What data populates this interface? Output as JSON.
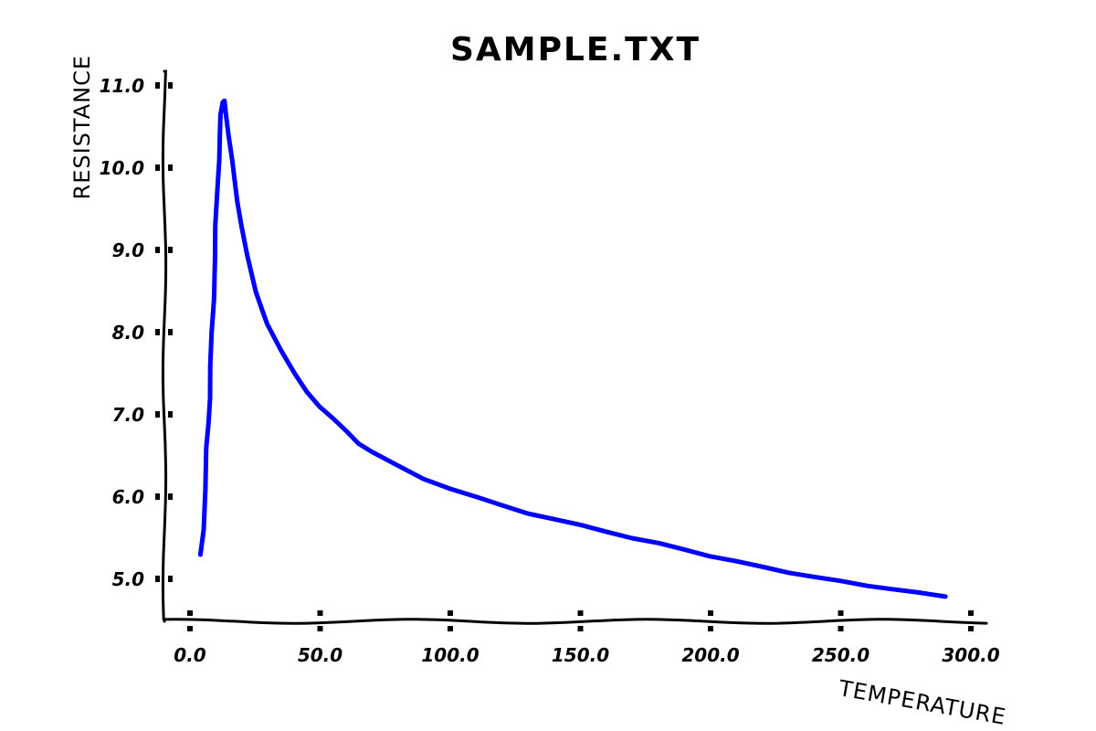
{
  "chart_data": {
    "type": "line",
    "title": "SAMPLE.TXT",
    "xlabel": "TEMPERATURE",
    "ylabel": "RESISTANCE",
    "xlim": [
      -10,
      305
    ],
    "ylim": [
      4.5,
      11.2
    ],
    "x_ticks": [
      0,
      50,
      100,
      150,
      200,
      250,
      300
    ],
    "x_tick_labels": [
      "0.0",
      "50.0",
      "100.0",
      "150.0",
      "200.0",
      "250.0",
      "300.0"
    ],
    "y_ticks": [
      5,
      6,
      7,
      8,
      9,
      10,
      11
    ],
    "y_tick_labels": [
      "5.0",
      "6.0",
      "7.0",
      "8.0",
      "9.0",
      "10.0",
      "11.0"
    ],
    "grid": false,
    "legend": "none",
    "style": "xkcd",
    "series": [
      {
        "color": "#0000ff",
        "x": [
          4.0,
          5.0,
          6.0,
          6.5,
          7.0,
          7.5,
          8.0,
          8.5,
          9.0,
          9.5,
          10.0,
          10.5,
          11.0,
          11.5,
          12.0,
          12.5,
          13.0,
          14.0,
          15.0,
          16.0,
          18.0,
          20.0,
          22.0,
          25.0,
          28.0,
          30.0,
          35.0,
          40.0,
          45.0,
          50.0,
          55.0,
          60.0,
          65.0,
          70.0,
          75.0,
          80.0,
          90.0,
          100.0,
          110.0,
          120.0,
          130.0,
          140.0,
          150.0,
          160.0,
          170.0,
          180.0,
          190.0,
          200.0,
          210.0,
          220.0,
          230.0,
          240.0,
          250.0,
          260.0,
          270.0,
          280.0,
          290.0
        ],
        "y": [
          5.3,
          5.6,
          6.1,
          6.6,
          6.9,
          7.2,
          7.6,
          8.0,
          8.4,
          8.9,
          9.3,
          9.7,
          10.1,
          10.4,
          10.65,
          10.8,
          10.82,
          10.65,
          10.4,
          10.1,
          9.6,
          9.3,
          8.95,
          8.5,
          8.25,
          8.1,
          7.78,
          7.5,
          7.28,
          7.1,
          6.95,
          6.8,
          6.65,
          6.55,
          6.46,
          6.38,
          6.22,
          6.1,
          6.0,
          5.9,
          5.8,
          5.73,
          5.66,
          5.58,
          5.5,
          5.44,
          5.36,
          5.28,
          5.22,
          5.15,
          5.08,
          5.03,
          4.98,
          4.92,
          4.88,
          4.84,
          4.79
        ]
      }
    ]
  }
}
